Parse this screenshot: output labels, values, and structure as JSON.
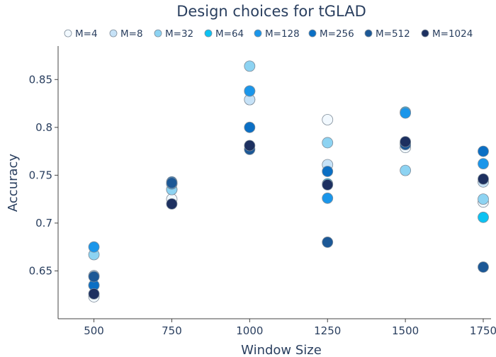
{
  "chart_data": {
    "type": "scatter",
    "title": "Design choices for tGLAD",
    "xlabel": "Window Size",
    "ylabel": "Accuracy",
    "x_ticks": [
      "500",
      "750",
      "1000",
      "1250",
      "1500",
      "1750"
    ],
    "y_ticks": [
      "0.65",
      "0.7",
      "0.75",
      "0.8",
      "0.85"
    ],
    "xlim": [
      385,
      1775
    ],
    "ylim": [
      0.6,
      0.885
    ],
    "grid": false,
    "legend_position": "top",
    "series": [
      {
        "name": "M=4",
        "color": "#f2f9ff",
        "x": [
          500,
          750,
          1000,
          1250,
          1500,
          1750
        ],
        "y": [
          0.623,
          0.725,
          0.829,
          0.808,
          0.779,
          0.722
        ]
      },
      {
        "name": "M=8",
        "color": "#c6e2f7",
        "x": [
          500,
          750,
          1000,
          1250,
          1500,
          1750
        ],
        "y": [
          0.645,
          0.735,
          0.829,
          0.761,
          0.783,
          0.743
        ]
      },
      {
        "name": "M=32",
        "color": "#8dd3f2",
        "x": [
          500,
          750,
          1000,
          1250,
          1500,
          1750
        ],
        "y": [
          0.667,
          0.735,
          0.864,
          0.784,
          0.755,
          0.725
        ]
      },
      {
        "name": "M=64",
        "color": "#0cc2f2",
        "x": [
          500,
          750,
          1000,
          1250,
          1500,
          1750
        ],
        "y": [
          0.635,
          0.741,
          0.838,
          0.741,
          0.816,
          0.706
        ]
      },
      {
        "name": "M=128",
        "color": "#1a96ea",
        "x": [
          500,
          750,
          1000,
          1250,
          1500,
          1750
        ],
        "y": [
          0.675,
          0.741,
          0.838,
          0.726,
          0.815,
          0.762
        ]
      },
      {
        "name": "M=256",
        "color": "#0b6fc4",
        "x": [
          500,
          750,
          1000,
          1250,
          1500,
          1750
        ],
        "y": [
          0.635,
          0.743,
          0.8,
          0.754,
          0.784,
          0.775
        ]
      },
      {
        "name": "M=512",
        "color": "#1c5896",
        "x": [
          500,
          750,
          1000,
          1250,
          1500,
          1750
        ],
        "y": [
          0.644,
          0.742,
          0.777,
          0.68,
          0.782,
          0.654
        ]
      },
      {
        "name": "M=1024",
        "color": "#1d3060",
        "x": [
          500,
          750,
          1000,
          1250,
          1500,
          1750
        ],
        "y": [
          0.626,
          0.72,
          0.781,
          0.74,
          0.785,
          0.746
        ]
      }
    ]
  }
}
